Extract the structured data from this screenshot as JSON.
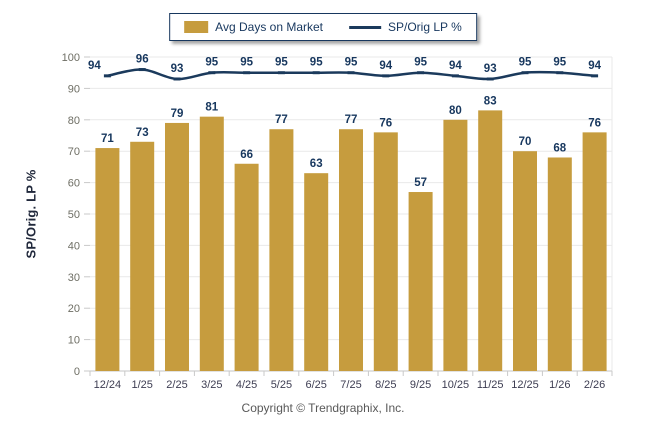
{
  "chart_data": {
    "type": "combo",
    "categories": [
      "12/24",
      "1/25",
      "2/25",
      "3/25",
      "4/25",
      "5/25",
      "6/25",
      "7/25",
      "8/25",
      "9/25",
      "10/25",
      "11/25",
      "12/25",
      "1/26",
      "2/26"
    ],
    "series": [
      {
        "name": "Avg Days on Market",
        "type": "bar",
        "color": "#C69C3E",
        "values": [
          71,
          73,
          79,
          81,
          66,
          77,
          63,
          77,
          76,
          57,
          80,
          83,
          70,
          68,
          76
        ]
      },
      {
        "name": "SP/Orig LP %",
        "type": "line",
        "color": "#1B3A5C",
        "values": [
          94,
          96,
          93,
          95,
          95,
          95,
          95,
          95,
          94,
          95,
          94,
          93,
          95,
          95,
          94
        ]
      }
    ],
    "title": "",
    "xlabel": "",
    "ylabel": "SP/Orig. LP %",
    "ylim": [
      0,
      100
    ],
    "ytick_step": 10,
    "grid": true,
    "legend_position": "top-center",
    "data_labels": true
  },
  "legend": {
    "items": [
      {
        "label": "Avg Days on Market",
        "swatch": "bar-swatch-icon"
      },
      {
        "label": "SP/Orig LP %",
        "swatch": "line-swatch-icon"
      }
    ]
  },
  "footer": {
    "copyright": "Copyright © Trendgraphix, Inc."
  },
  "colors": {
    "bar": "#C69C3E",
    "line": "#1B3A5C",
    "value_label": "#17375E",
    "gridline": "#E9E9E9",
    "axis_line": "#C6C6C6",
    "tick": "#C9C9C9",
    "y_tick_label": "#6E6E64",
    "x_tick_label": "#3D3D52"
  }
}
